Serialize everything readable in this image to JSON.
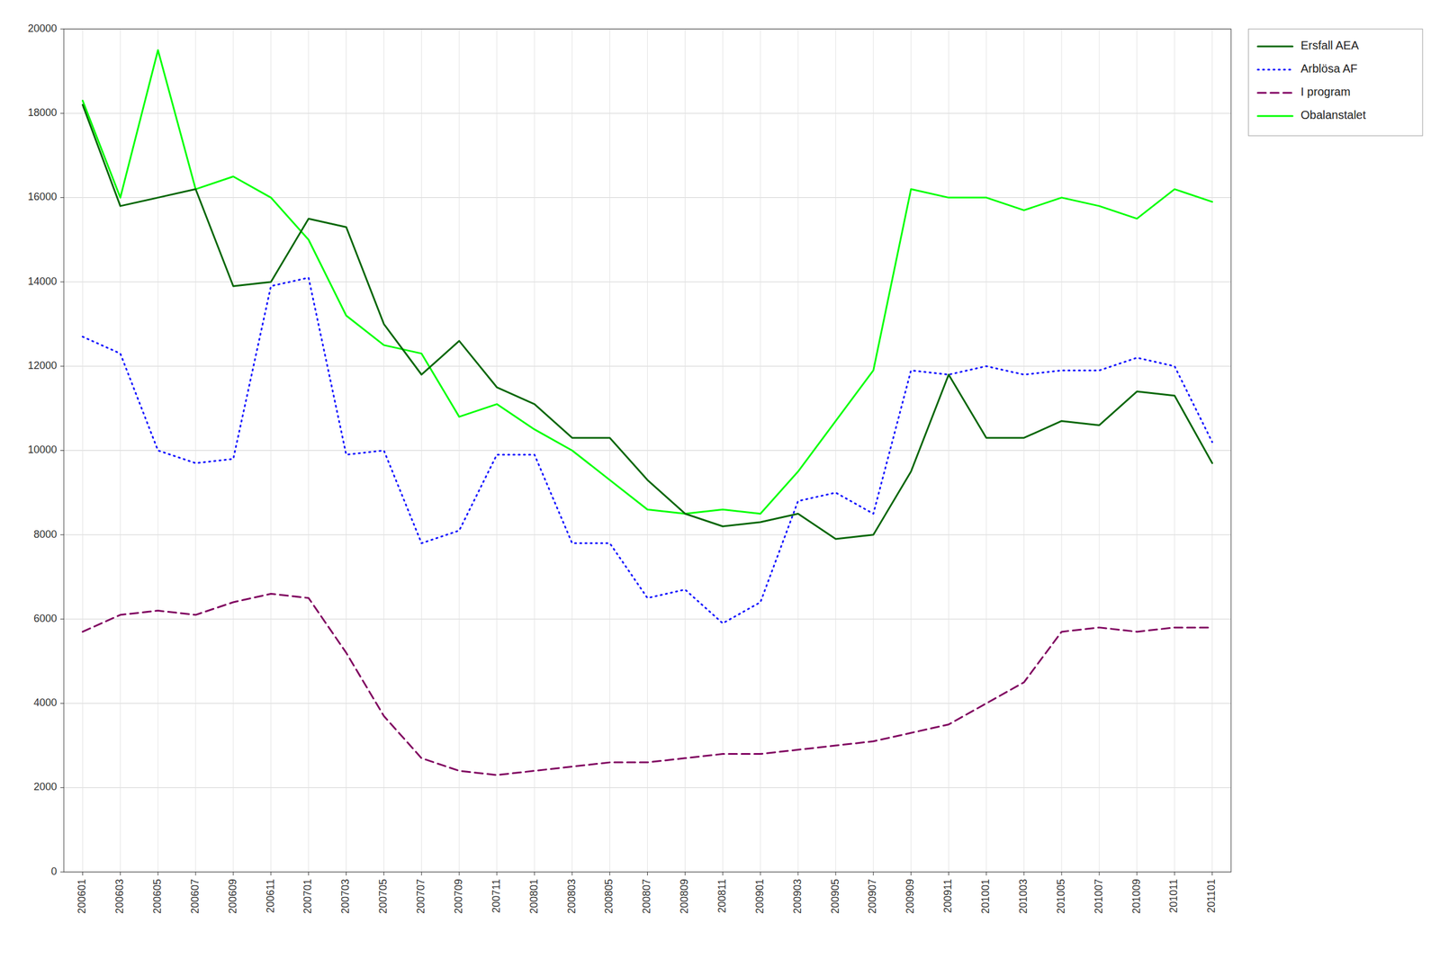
{
  "chart_data": {
    "type": "line",
    "categories": [
      "200601",
      "200603",
      "200605",
      "200607",
      "200609",
      "200611",
      "200701",
      "200703",
      "200705",
      "200707",
      "200709",
      "200711",
      "200801",
      "200803",
      "200805",
      "200807",
      "200809",
      "200811",
      "200901",
      "200903",
      "200905",
      "200907",
      "200909",
      "200911",
      "201001",
      "201003",
      "201005",
      "201007",
      "201009",
      "201011",
      "201101"
    ],
    "series": [
      {
        "name": "Ersfall AEA",
        "color": "#006600",
        "line_style": "solid",
        "values": [
          18200,
          15800,
          16000,
          16200,
          13900,
          14000,
          15500,
          15300,
          13000,
          11800,
          12600,
          11500,
          11100,
          10300,
          10300,
          9300,
          8500,
          8200,
          8300,
          8500,
          7900,
          8000,
          9500,
          11800,
          10300,
          10300,
          10700,
          10600,
          11400,
          11300,
          9700
        ]
      },
      {
        "name": "Arblösa AF",
        "color": "#1414ff",
        "line_style": "dotted",
        "values": [
          12700,
          12300,
          10000,
          9700,
          9800,
          13900,
          14100,
          9900,
          10000,
          7800,
          8100,
          9900,
          9900,
          7800,
          7800,
          6500,
          6700,
          5900,
          6400,
          8800,
          9000,
          8500,
          11900,
          11800,
          12000,
          11800,
          11900,
          11900,
          12200,
          12000,
          10200
        ]
      },
      {
        "name": "I program",
        "color": "#800060",
        "line_style": "dashed",
        "values": [
          5700,
          6100,
          6200,
          6100,
          6400,
          6600,
          6500,
          5200,
          3700,
          2700,
          2400,
          2300,
          2400,
          2500,
          2600,
          2600,
          2700,
          2800,
          2800,
          2900,
          3000,
          3100,
          3300,
          3500,
          4000,
          4500,
          5700,
          5800,
          5700,
          5800,
          5800
        ]
      },
      {
        "name": "Obalanstalet",
        "color": "#00ff00",
        "line_style": "solid",
        "values": [
          18300,
          16000,
          19500,
          16200,
          16500,
          16000,
          15000,
          13200,
          12500,
          12300,
          10800,
          11100,
          10500,
          10000,
          9300,
          8600,
          8500,
          8600,
          8500,
          9500,
          10700,
          11900,
          16200,
          16000,
          16000,
          15700,
          16000,
          15800,
          15500,
          16200,
          15900
        ]
      }
    ],
    "ylim": [
      0,
      20000
    ],
    "yticks": [
      0,
      2000,
      4000,
      6000,
      8000,
      10000,
      12000,
      14000,
      16000,
      18000,
      20000
    ],
    "grid": true,
    "legend": "upper-right"
  }
}
